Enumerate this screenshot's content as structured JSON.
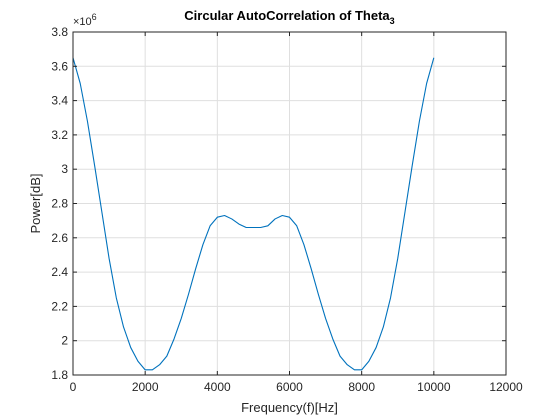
{
  "chart_data": {
    "type": "line",
    "title": "Circular AutoCorrelation of Theta",
    "title_subscript": "3",
    "xlabel": "Frequency(f)[Hz]",
    "ylabel": "Power[dB]",
    "xlim": [
      0,
      12000
    ],
    "ylim": [
      1.8,
      3.8
    ],
    "y_exponent_label": "×10",
    "y_exponent": "6",
    "xticks": [
      0,
      2000,
      4000,
      6000,
      8000,
      10000,
      12000
    ],
    "yticks": [
      1.8,
      2,
      2.2,
      2.4,
      2.6,
      2.8,
      3,
      3.2,
      3.4,
      3.6,
      3.8
    ],
    "grid": true,
    "line_color": "#0072BD",
    "series": [
      {
        "x": [
          0,
          200,
          400,
          600,
          800,
          1000,
          1200,
          1400,
          1600,
          1800,
          2000,
          2200,
          2400,
          2600,
          2800,
          3000,
          3200,
          3400,
          3600,
          3800,
          4000,
          4200,
          4400,
          4600,
          4800,
          5000,
          5200,
          5400,
          5600,
          5800,
          6000,
          6200,
          6400,
          6600,
          6800,
          7000,
          7200,
          7400,
          7600,
          7800,
          8000,
          8200,
          8400,
          8600,
          8800,
          9000,
          9200,
          9400,
          9600,
          9800,
          10000
        ],
        "values": [
          3.65,
          3.5,
          3.28,
          3.02,
          2.75,
          2.48,
          2.25,
          2.08,
          1.96,
          1.88,
          1.83,
          1.83,
          1.86,
          1.91,
          2.01,
          2.13,
          2.27,
          2.42,
          2.56,
          2.67,
          2.72,
          2.73,
          2.71,
          2.68,
          2.66,
          2.66,
          2.66,
          2.67,
          2.71,
          2.73,
          2.72,
          2.67,
          2.56,
          2.42,
          2.27,
          2.13,
          2.01,
          1.91,
          1.86,
          1.83,
          1.83,
          1.88,
          1.96,
          2.08,
          2.25,
          2.48,
          2.75,
          3.02,
          3.28,
          3.5,
          3.65
        ]
      }
    ]
  }
}
